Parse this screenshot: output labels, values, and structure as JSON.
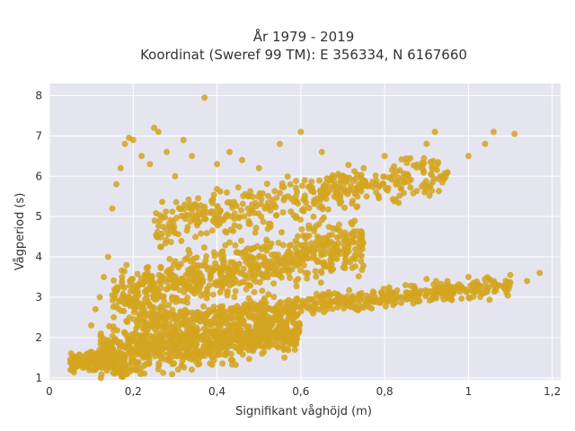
{
  "chart_data": {
    "type": "scatter",
    "title": "År 1979 - 2019",
    "subtitle": "Koordinat (Sweref 99 TM): E 356334, N 6167660",
    "xlabel": "Signifikant våghöjd (m)",
    "ylabel": "Vågperiod (s)",
    "xlim": [
      0,
      1.22
    ],
    "ylim": [
      0.95,
      8.3
    ],
    "x_ticks": [
      0,
      0.2,
      0.4,
      0.6,
      0.8,
      1,
      1.2
    ],
    "x_tick_labels": [
      "0",
      "0,2",
      "0,4",
      "0,6",
      "0,8",
      "1",
      "1,2"
    ],
    "y_ticks": [
      1,
      2,
      3,
      4,
      5,
      6,
      7,
      8
    ],
    "y_tick_labels": [
      "1",
      "2",
      "3",
      "4",
      "5",
      "6",
      "7",
      "8"
    ],
    "grid": true,
    "plot_background": "#e5e5ef",
    "marker_color": "#d4a420",
    "series": [
      {
        "values": [
          {
            "x": 0.05,
            "y": 1.45
          },
          {
            "x": 0.06,
            "y": 1.3
          },
          {
            "x": 0.07,
            "y": 1.5
          },
          {
            "x": 0.08,
            "y": 1.25
          },
          {
            "x": 0.09,
            "y": 1.6
          },
          {
            "x": 0.1,
            "y": 1.4
          },
          {
            "x": 0.11,
            "y": 1.2
          },
          {
            "x": 0.12,
            "y": 1.7
          },
          {
            "x": 0.13,
            "y": 1.3
          },
          {
            "x": 0.14,
            "y": 1.55
          },
          {
            "x": 0.1,
            "y": 2.3
          },
          {
            "x": 0.11,
            "y": 2.7
          },
          {
            "x": 0.12,
            "y": 3.0
          },
          {
            "x": 0.13,
            "y": 3.5
          },
          {
            "x": 0.14,
            "y": 4.0
          },
          {
            "x": 0.15,
            "y": 5.2
          },
          {
            "x": 0.16,
            "y": 5.8
          },
          {
            "x": 0.17,
            "y": 6.2
          },
          {
            "x": 0.18,
            "y": 6.8
          },
          {
            "x": 0.19,
            "y": 6.95
          },
          {
            "x": 0.2,
            "y": 6.9
          },
          {
            "x": 0.22,
            "y": 6.5
          },
          {
            "x": 0.24,
            "y": 6.3
          },
          {
            "x": 0.25,
            "y": 7.2
          },
          {
            "x": 0.26,
            "y": 7.1
          },
          {
            "x": 0.28,
            "y": 6.6
          },
          {
            "x": 0.3,
            "y": 6.0
          },
          {
            "x": 0.32,
            "y": 6.9
          },
          {
            "x": 0.34,
            "y": 6.5
          },
          {
            "x": 0.37,
            "y": 7.95
          },
          {
            "x": 0.4,
            "y": 6.3
          },
          {
            "x": 0.43,
            "y": 6.6
          },
          {
            "x": 0.46,
            "y": 6.4
          },
          {
            "x": 0.5,
            "y": 6.2
          },
          {
            "x": 0.55,
            "y": 6.8
          },
          {
            "x": 0.6,
            "y": 7.1
          },
          {
            "x": 0.65,
            "y": 6.6
          },
          {
            "x": 0.7,
            "y": 6.0
          },
          {
            "x": 0.75,
            "y": 6.2
          },
          {
            "x": 0.8,
            "y": 6.5
          },
          {
            "x": 0.85,
            "y": 6.0
          },
          {
            "x": 0.9,
            "y": 6.8
          },
          {
            "x": 0.92,
            "y": 7.1
          },
          {
            "x": 0.95,
            "y": 6.1
          },
          {
            "x": 1.0,
            "y": 6.5
          },
          {
            "x": 1.04,
            "y": 6.8
          },
          {
            "x": 1.06,
            "y": 7.1
          },
          {
            "x": 1.11,
            "y": 7.05
          },
          {
            "x": 0.85,
            "y": 3.3
          },
          {
            "x": 0.9,
            "y": 3.45
          },
          {
            "x": 0.95,
            "y": 3.4
          },
          {
            "x": 1.0,
            "y": 3.5
          },
          {
            "x": 1.05,
            "y": 3.45
          },
          {
            "x": 1.1,
            "y": 3.55
          },
          {
            "x": 1.14,
            "y": 3.4
          },
          {
            "x": 1.17,
            "y": 3.6
          }
        ],
        "dense_regions": [
          {
            "x_range": [
              0.05,
              0.16
            ],
            "y_center_at_x0": 1.35,
            "slope": 0.9,
            "spread": 0.18,
            "count": 160
          },
          {
            "x_range": [
              0.12,
              0.6
            ],
            "y_center_at_x0": 1.35,
            "slope": 1.55,
            "spread": 0.5,
            "count": 900
          },
          {
            "x_range": [
              0.2,
              1.1
            ],
            "y_center_at_x0": 2.2,
            "slope": 1.0,
            "spread": 0.2,
            "count": 500
          },
          {
            "x_range": [
              0.15,
              0.75
            ],
            "y_center_at_x0": 2.6,
            "slope": 2.4,
            "spread": 0.55,
            "count": 700
          },
          {
            "x_range": [
              0.25,
              0.95
            ],
            "y_center_at_x0": 4.3,
            "slope": 1.9,
            "spread": 0.45,
            "count": 420
          }
        ]
      }
    ]
  }
}
